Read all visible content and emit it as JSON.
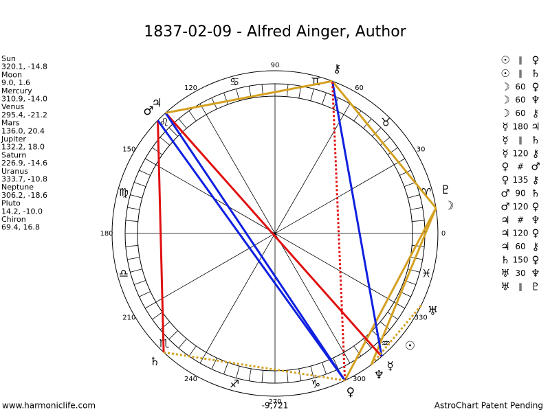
{
  "header": {
    "title": "1837-02-09 - Alfred Ainger, Author"
  },
  "planets": [
    {
      "name": "Sun",
      "glyph": "☉",
      "coords": "320.1, -14.8"
    },
    {
      "name": "Moon",
      "glyph": "☽",
      "coords": "9.0, 1.6"
    },
    {
      "name": "Mercury",
      "glyph": "☿",
      "coords": "310.9, -14.0"
    },
    {
      "name": "Venus",
      "glyph": "♀",
      "coords": "295.4, -21.2"
    },
    {
      "name": "Mars",
      "glyph": "♂",
      "coords": "136.0, 20.4"
    },
    {
      "name": "Jupiter",
      "glyph": "♃",
      "coords": "132.2, 18.0"
    },
    {
      "name": "Saturn",
      "glyph": "♄",
      "coords": "226.9, -14.6"
    },
    {
      "name": "Uranus",
      "glyph": "♅",
      "coords": "333.7, -10.8"
    },
    {
      "name": "Neptune",
      "glyph": "♆",
      "coords": "306.2, -18.6"
    },
    {
      "name": "Pluto",
      "glyph": "♇",
      "coords": "14.2, -10.0"
    },
    {
      "name": "Chiron",
      "glyph": "⚷",
      "coords": "69.4, 16.8"
    }
  ],
  "signs": [
    "♈",
    "♉",
    "♊",
    "♋",
    "♌",
    "♍",
    "♎",
    "♏",
    "♐",
    "♑",
    "♒",
    "♓"
  ],
  "degrees": [
    0,
    30,
    60,
    90,
    120,
    150,
    180,
    210,
    240,
    270,
    300,
    330
  ],
  "aspects": [
    {
      "from": "☉",
      "aspect": "∥",
      "to": "♀"
    },
    {
      "from": "☉",
      "aspect": "∥",
      "to": "♄"
    },
    {
      "from": "☽",
      "aspect": "60",
      "to": "♀",
      "color": "#d4a020"
    },
    {
      "from": "☽",
      "aspect": "60",
      "to": "♆",
      "color": "#d4a020"
    },
    {
      "from": "☽",
      "aspect": "60",
      "to": "⚷",
      "color": "#d4a020"
    },
    {
      "from": "☿",
      "aspect": "180",
      "to": "♃",
      "color": "#e01010"
    },
    {
      "from": "☿",
      "aspect": "∥",
      "to": "♄"
    },
    {
      "from": "☿",
      "aspect": "120",
      "to": "⚷",
      "color": "#1020e0"
    },
    {
      "from": "♀",
      "aspect": "#",
      "to": "♂"
    },
    {
      "from": "♀",
      "aspect": "135",
      "to": "⚷",
      "color": "#e01010",
      "dotted": true
    },
    {
      "from": "♂",
      "aspect": "90",
      "to": "♄",
      "color": "#e01010"
    },
    {
      "from": "♂",
      "aspect": "120",
      "to": "♀",
      "color": "#1020e0"
    },
    {
      "from": "♃",
      "aspect": "#",
      "to": "♆"
    },
    {
      "from": "♃",
      "aspect": "120",
      "to": "♀",
      "color": "#1020e0"
    },
    {
      "from": "♃",
      "aspect": "60",
      "to": "⚷",
      "color": "#d4a020"
    },
    {
      "from": "♄",
      "aspect": "150",
      "to": "♀",
      "color": "#d4a020",
      "dotted": true
    },
    {
      "from": "♅",
      "aspect": "30",
      "to": "♆",
      "color": "#d4a020",
      "dotted": true
    },
    {
      "from": "♅",
      "aspect": "∥",
      "to": "♇"
    }
  ],
  "footer": {
    "left": "www.harmoniclife.com",
    "center": "-9,721",
    "right": "AstroChart Patent Pending"
  }
}
